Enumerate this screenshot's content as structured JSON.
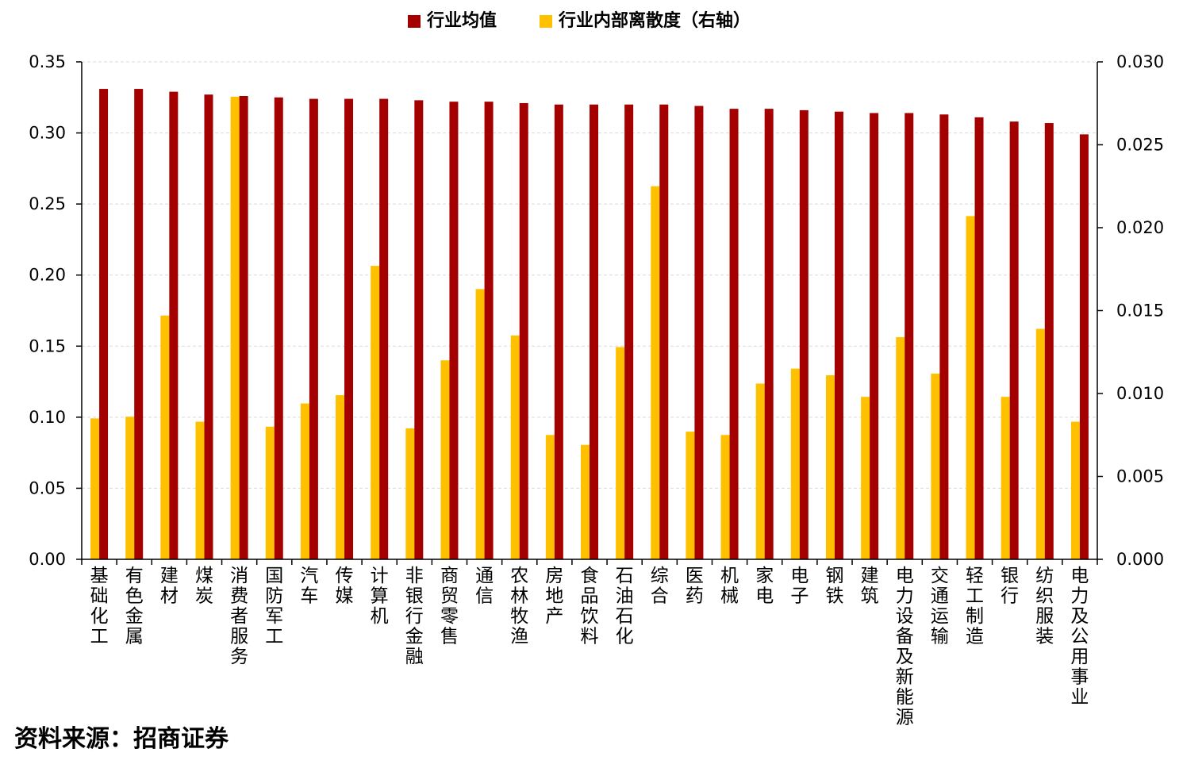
{
  "chart_data": {
    "type": "bar",
    "legend": {
      "placement": "top-center",
      "entries": [
        "行业均值",
        "行业内部离散度（右轴）"
      ]
    },
    "categories": [
      "基础化工",
      "有色金属",
      "建材",
      "煤炭",
      "消费者服务",
      "国防军工",
      "汽车",
      "传媒",
      "计算机",
      "非银行金融",
      "商贸零售",
      "通信",
      "农林牧渔",
      "房地产",
      "食品饮料",
      "石油石化",
      "综合",
      "医药",
      "机械",
      "家电",
      "电子",
      "钢铁",
      "建筑",
      "电力设备及新能源",
      "交通运输",
      "轻工制造",
      "银行",
      "纺织服装",
      "电力及公用事业"
    ],
    "series": [
      {
        "name": "行业均值",
        "axis": "left",
        "color": "#A50000",
        "values": [
          0.331,
          0.331,
          0.329,
          0.327,
          0.326,
          0.325,
          0.324,
          0.324,
          0.324,
          0.323,
          0.322,
          0.322,
          0.321,
          0.32,
          0.32,
          0.32,
          0.32,
          0.319,
          0.317,
          0.317,
          0.316,
          0.315,
          0.314,
          0.314,
          0.313,
          0.311,
          0.308,
          0.307,
          0.299
        ]
      },
      {
        "name": "行业内部离散度（右轴）",
        "axis": "right",
        "color": "#FFC000",
        "values": [
          0.0085,
          0.0086,
          0.0147,
          0.0083,
          0.0279,
          0.008,
          0.0094,
          0.0099,
          0.0177,
          0.0079,
          0.012,
          0.0163,
          0.0135,
          0.0075,
          0.0069,
          0.0128,
          0.0225,
          0.0077,
          0.0075,
          0.0106,
          0.0115,
          0.0111,
          0.0098,
          0.0134,
          0.0112,
          0.0207,
          0.0098,
          0.0139,
          0.0083
        ]
      }
    ],
    "y_left": {
      "min": 0,
      "max": 0.35,
      "ticks": [
        "0.00",
        "0.05",
        "0.10",
        "0.15",
        "0.20",
        "0.25",
        "0.30",
        "0.35"
      ]
    },
    "y_right": {
      "min": 0,
      "max": 0.03,
      "ticks": [
        "0.000",
        "0.005",
        "0.010",
        "0.015",
        "0.020",
        "0.025",
        "0.030"
      ]
    },
    "grid": true
  },
  "source": "资料来源：招商证券"
}
